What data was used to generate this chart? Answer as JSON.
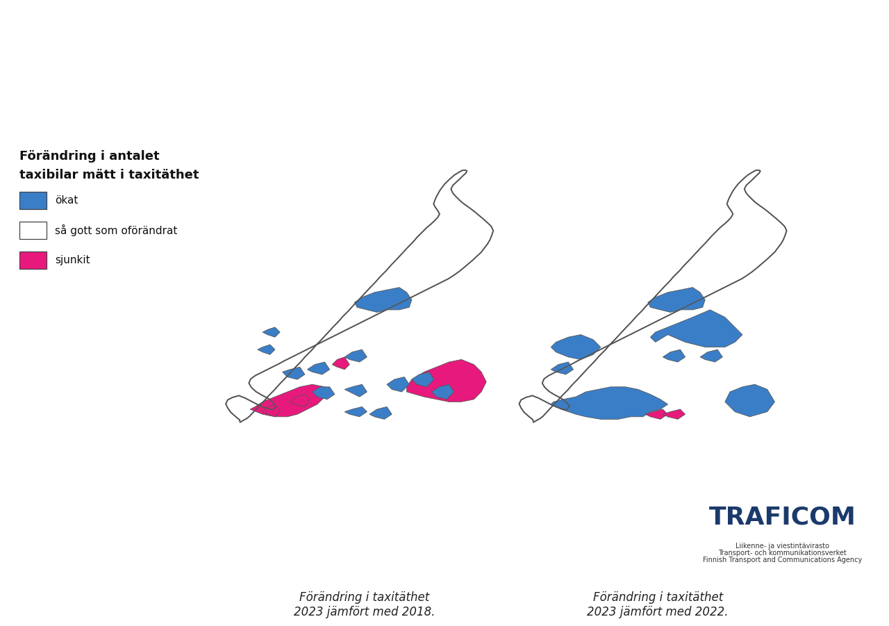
{
  "title_legend_line1": "Förändring i antalet",
  "title_legend_line2": "taxibilar mätt i taxitäthet",
  "legend_items": [
    {
      "label": "ökat",
      "color": "#3B7EC8"
    },
    {
      "label": "så gott som oförändrat",
      "color": "#FFFFFF"
    },
    {
      "label": "sjunkit",
      "color": "#E8197D"
    }
  ],
  "caption_left": "Förändring i taxitäthet\n2023 jämfört med 2018.",
  "caption_right": "Förändring i taxitäthet\n2023 jämfört med 2022.",
  "traficom_text": "TRAFICOM",
  "traficom_sub1": "Liikenne- ja viestintävirasto",
  "traficom_sub2": "Transport- och kommunikationsverket",
  "traficom_sub3": "Finnish Transport and Communications Agency",
  "background_color": "#FFFFFF",
  "border_color": "#444444",
  "blue_color": "#3B7EC8",
  "pink_color": "#E8197D",
  "traficom_color": "#1B3A6B",
  "map_facecolor": "#FFFFFF",
  "map_edgecolor": "#555555"
}
